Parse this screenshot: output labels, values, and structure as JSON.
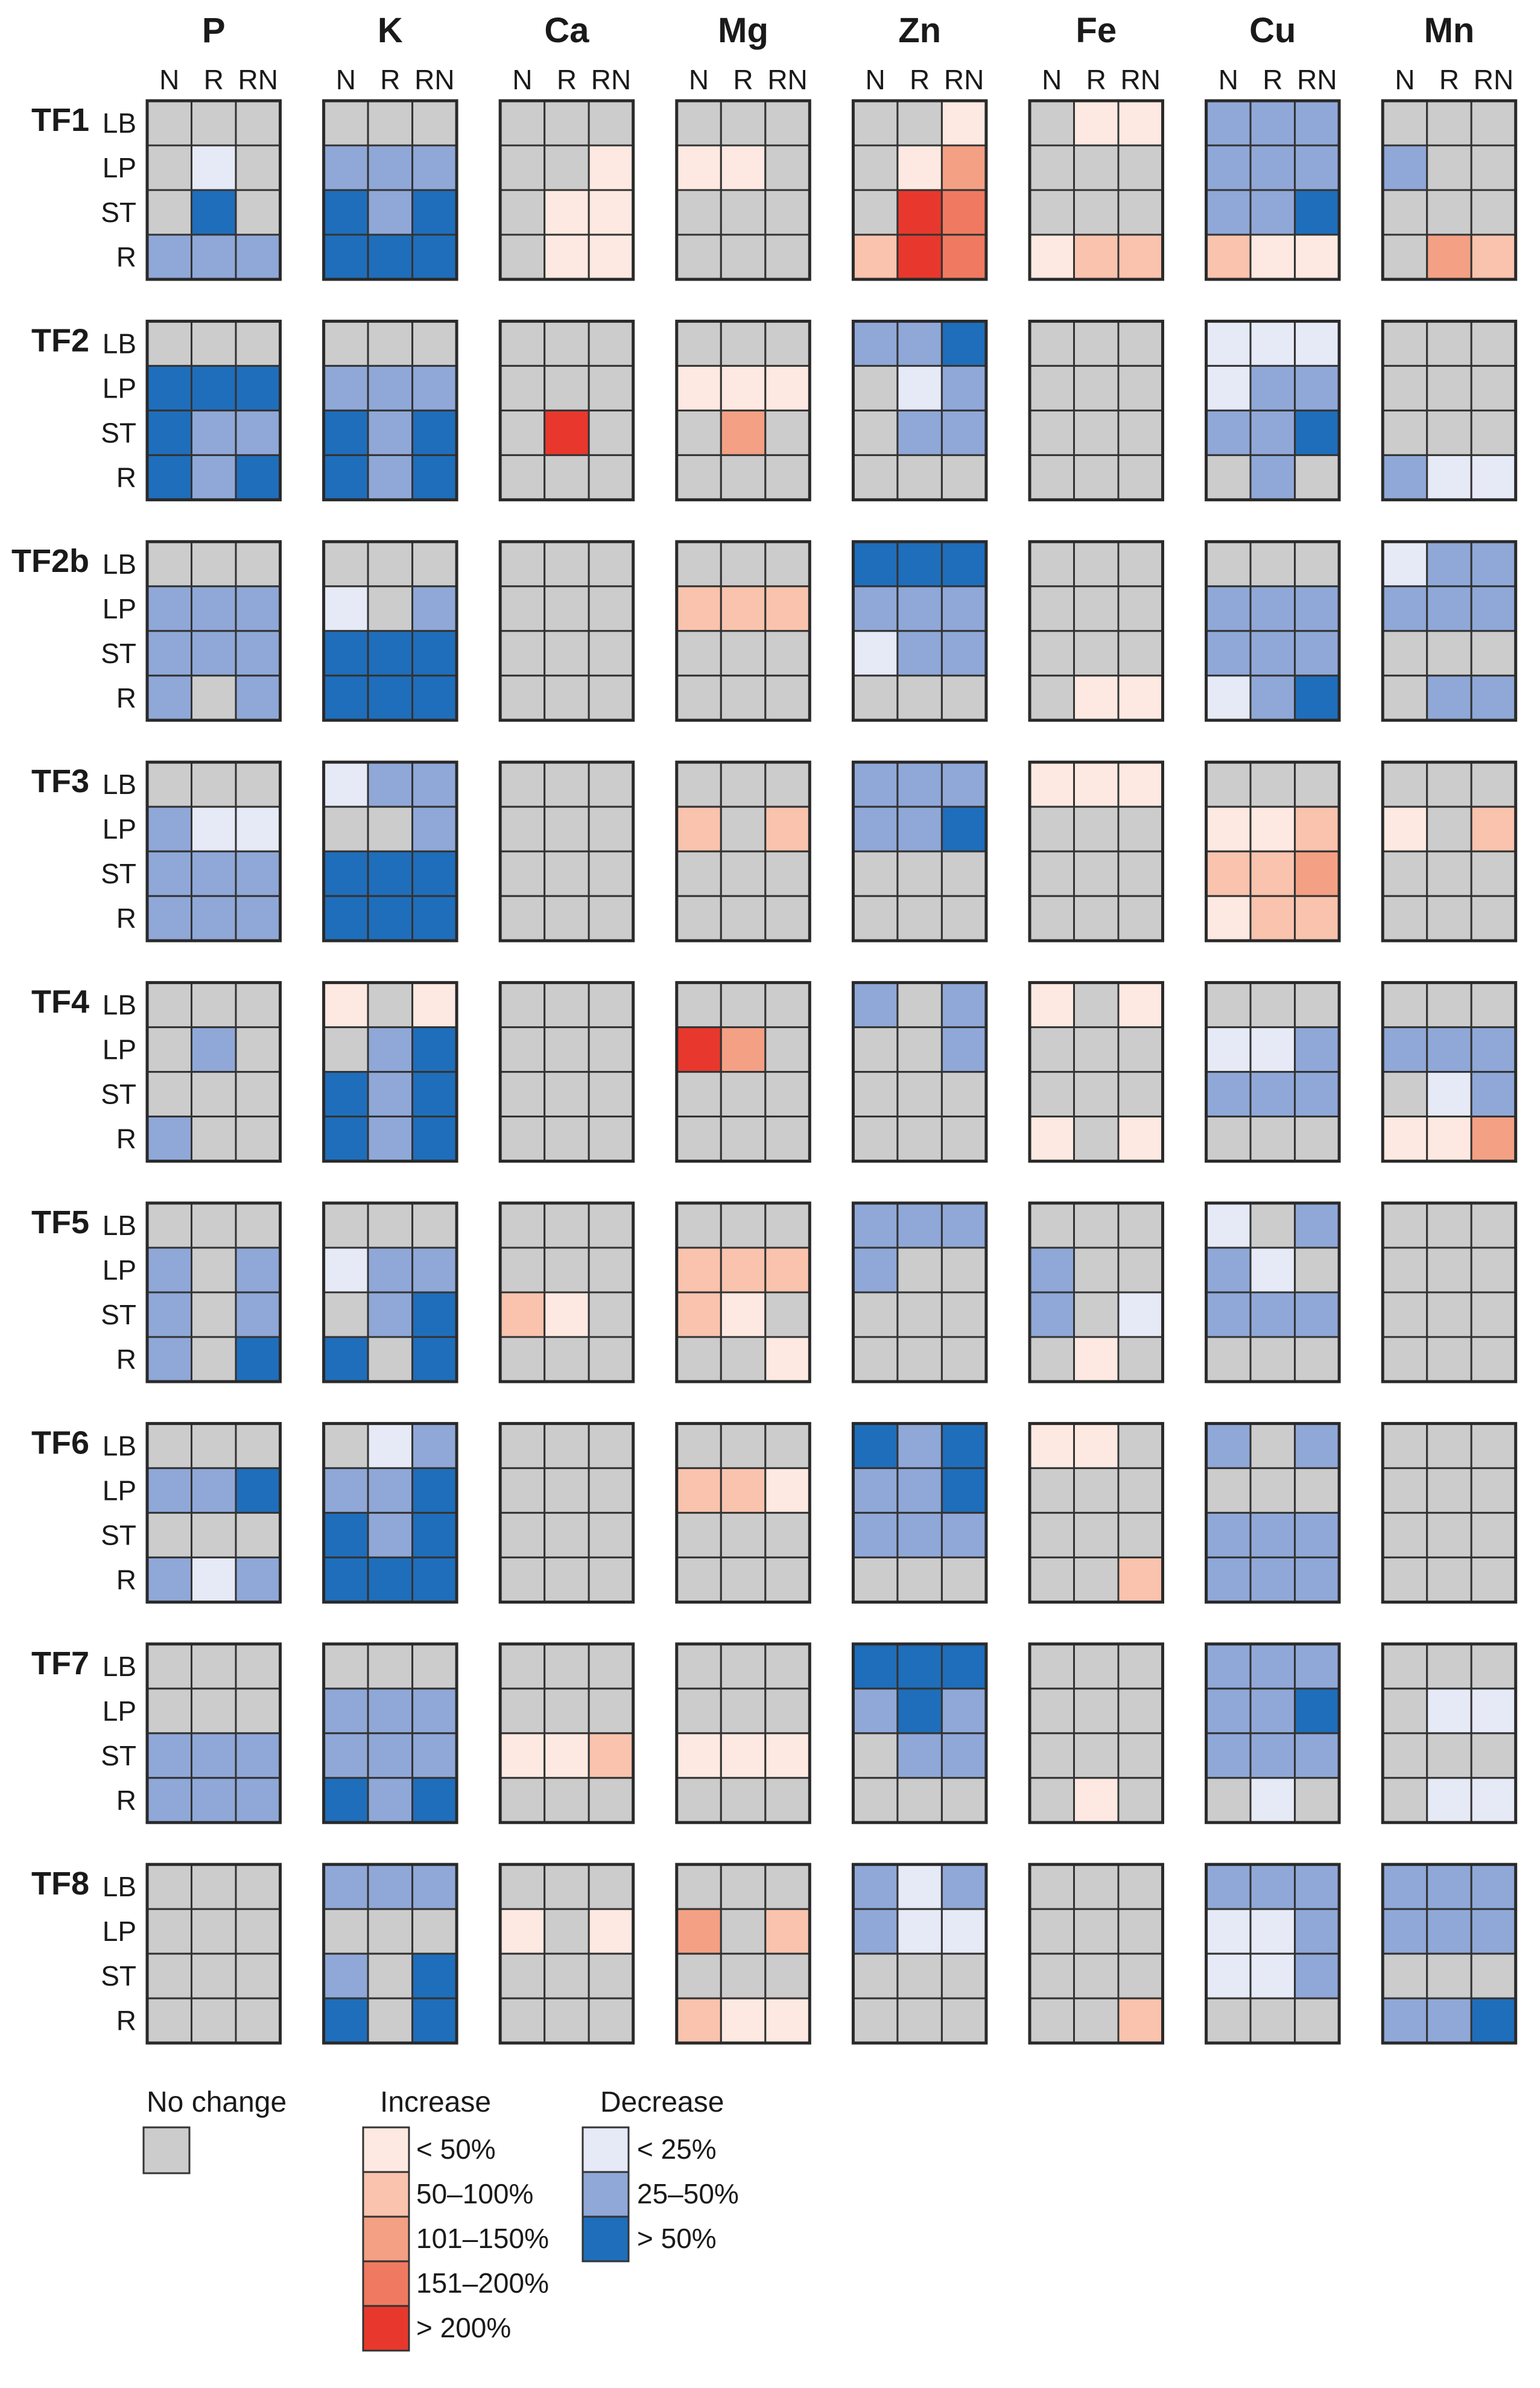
{
  "chart_data": {
    "type": "heatmap",
    "elements": [
      "P",
      "K",
      "Ca",
      "Mg",
      "Zn",
      "Fe",
      "Cu",
      "Mn"
    ],
    "columns": [
      "N",
      "R",
      "RN"
    ],
    "tissues": [
      "LB",
      "LP",
      "ST",
      "R"
    ],
    "legend": {
      "no_change": {
        "title": "No change",
        "key": "g"
      },
      "increase": {
        "title": "Increase",
        "items": [
          {
            "key": "i1",
            "label": "< 50%"
          },
          {
            "key": "i2",
            "label": "50–100%"
          },
          {
            "key": "i3",
            "label": "101–150%"
          },
          {
            "key": "i4",
            "label": "151–200%"
          },
          {
            "key": "i5",
            "label": "> 200%"
          }
        ]
      },
      "decrease": {
        "title": "Decrease",
        "items": [
          {
            "key": "d1",
            "label": "< 25%"
          },
          {
            "key": "d2",
            "label": "25–50%"
          },
          {
            "key": "d3",
            "label": "> 50%"
          }
        ]
      }
    },
    "colors": {
      "g": "#cccccc",
      "i1": "#fde9e1",
      "i2": "#f9c3ad",
      "i3": "#f4a084",
      "i4": "#ef7a61",
      "i5": "#e8382d",
      "d1": "#e6e9f6",
      "d2": "#8fa8d8",
      "d3": "#1f6ebb"
    },
    "groups": [
      {
        "name": "TF1",
        "data": [
          [
            "g g g|g d1 g|g d3 g|d2 d2 d2",
            "g g g|d2 d2 d2|d3 d2 d3|d3 d3 d3",
            "g g g|g g i1|g i1 i1|g i1 i1",
            "g g g|i1 i1 g|g g g|g g g",
            "g g i1|g i1 i3|g i5 i4|i2 i5 i4",
            "g i1 i1|g g g|g g g|i1 i2 i2",
            "d2 d2 d2|d2 d2 d2|d2 d2 d3|i2 i1 i1",
            "g g g|d2 g g|g g g|g i3 i2"
          ]
        ]
      },
      {
        "name": "TF2",
        "data": [
          [
            "g g g|d3 d3 d3|d3 d2 d2|d3 d2 d3",
            "g g g|d2 d2 d2|d3 d2 d3|d3 d2 d3",
            "g g g|g g g|g i5 g|g g g",
            "g g g|i1 i1 i1|g i3 g|g g g",
            "d2 d2 d3|g d1 d2|g d2 d2|g g g",
            "g g g|g g g|g g g|g g g",
            "d1 d1 d1|d1 d2 d2|d2 d2 d3|g d2 g",
            "g g g|g g g|g g g|d2 d1 d1"
          ]
        ]
      },
      {
        "name": "TF2b",
        "data": [
          [
            "g g g|d2 d2 d2|d2 d2 d2|d2 g d2",
            "g g g|d1 g d2|d3 d3 d3|d3 d3 d3",
            "g g g|g g g|g g g|g g g",
            "g g g|i2 i2 i2|g g g|g g g",
            "d3 d3 d3|d2 d2 d2|d1 d2 d2|g g g",
            "g g g|g g g|g g g|g i1 i1",
            "g g g|d2 d2 d2|d2 d2 d2|d1 d2 d3",
            "d1 d2 d2|d2 d2 d2|g g g|g d2 d2"
          ]
        ]
      },
      {
        "name": "TF3",
        "data": [
          [
            "g g g|d2 d1 d1|d2 d2 d2|d2 d2 d2",
            "d1 d2 d2|g g d2|d3 d3 d3|d3 d3 d3",
            "g g g|g g g|g g g|g g g",
            "g g g|i2 g i2|g g g|g g g",
            "d2 d2 d2|d2 d2 d3|g g g|g g g",
            "i1 i1 i1|g g g|g g g|g g g",
            "g g g|i1 i1 i2|i2 i2 i3|i1 i2 i2",
            "g g g|i1 g i2|g g g|g g g"
          ]
        ]
      },
      {
        "name": "TF4",
        "data": [
          [
            "g g g|g d2 g|g g g|d2 g g",
            "i1 g i1|g d2 d3|d3 d2 d3|d3 d2 d3",
            "g g g|g g g|g g g|g g g",
            "g g g|i5 i3 g|g g g|g g g",
            "d2 g d2|g g d2|g g g|g g g",
            "i1 g i1|g g g|g g g|i1 g i1",
            "g g g|d1 d1 d2|d2 d2 d2|g g g",
            "g g g|d2 d2 d2|g d1 d2|i1 i1 i3"
          ]
        ]
      },
      {
        "name": "TF5",
        "data": [
          [
            "g g g|d2 g d2|d2 g d2|d2 g d3",
            "g g g|d1 d2 d2|g d2 d3|d3 g d3",
            "g g g|g g g|i2 i1 g|g g g",
            "g g g|i2 i2 i2|i2 i1 g|g g i1",
            "d2 d2 d2|d2 g g|g g g|g g g",
            "g g g|d2 g g|d2 g d1|g i1 g",
            "d1 g d2|d2 d1 g|d2 d2 d2|g g g",
            "g g g|g g g|g g g|g g g"
          ]
        ]
      },
      {
        "name": "TF6",
        "data": [
          [
            "g g g|d2 d2 d3|g g g|d2 d1 d2",
            "g d1 d2|d2 d2 d3|d3 d2 d3|d3 d3 d3",
            "g g g|g g g|g g g|g g g",
            "g g g|i2 i2 i1|g g g|g g g",
            "d3 d2 d3|d2 d2 d3|d2 d2 d2|g g g",
            "i1 i1 g|g g g|g g g|g g i2",
            "d2 g d2|g g g|d2 d2 d2|d2 d2 d2",
            "g g g|g g g|g g g|g g g"
          ]
        ]
      },
      {
        "name": "TF7",
        "data": [
          [
            "g g g|g g g|d2 d2 d2|d2 d2 d2",
            "g g g|d2 d2 d2|d2 d2 d2|d3 d2 d3",
            "g g g|g g g|i1 i1 i2|g g g",
            "g g g|g g g|i1 i1 i1|g g g",
            "d3 d3 d3|d2 d3 d2|g d2 d2|g g g",
            "g g g|g g g|g g g|g i1 g",
            "d2 d2 d2|d2 d2 d3|d2 d2 d2|g d1 g",
            "g g g|g d1 d1|g g g|g d1 d1"
          ]
        ]
      },
      {
        "name": "TF8",
        "data": [
          [
            "g g g|g g g|g g g|g g g",
            "d2 d2 d2|g g g|d2 g d3|d3 g d3",
            "g g g|i1 g i1|g g g|g g g",
            "g g g|i3 g i2|g g g|i2 i1 i1",
            "d2 d1 d2|d2 d1 d1|g g g|g g g",
            "g g g|g g g|g g g|g g i2",
            "d2 d2 d2|d1 d1 d2|d1 d1 d2|g g g",
            "d2 d2 d2|d2 d2 d2|g g g|d2 d2 d3"
          ]
        ]
      }
    ]
  }
}
